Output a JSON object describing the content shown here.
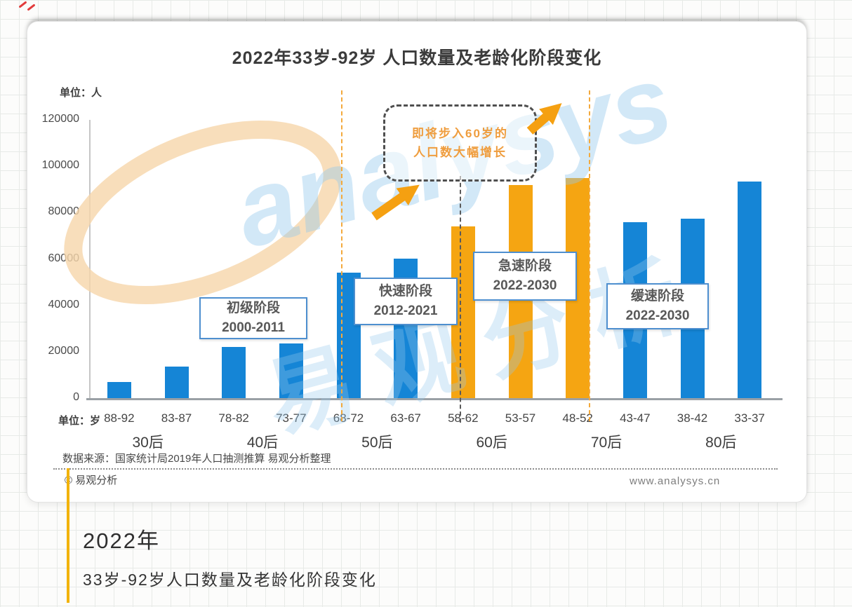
{
  "chart_data": {
    "type": "bar",
    "title": "2022年33岁-92岁 人口数量及老龄化阶段变化",
    "categories": [
      "88-92",
      "83-87",
      "78-82",
      "73-77",
      "68-72",
      "63-67",
      "58-62",
      "53-57",
      "48-52",
      "43-47",
      "38-42",
      "33-37"
    ],
    "values": [
      7000,
      13500,
      22000,
      23500,
      54000,
      60000,
      74000,
      92000,
      95000,
      76000,
      77500,
      93500
    ],
    "bar_colors": [
      "blue",
      "blue",
      "blue",
      "blue",
      "blue",
      "blue",
      "orange",
      "orange",
      "orange",
      "blue",
      "blue",
      "blue"
    ],
    "colors": {
      "blue": "#1585d6",
      "orange": "#f5a512"
    },
    "generations": [
      "30后",
      "40后",
      "50后",
      "60后",
      "70后",
      "80后"
    ],
    "ylim": [
      0,
      120000
    ],
    "y_tick_labels": [
      "120000",
      "100000",
      "80000",
      "60000",
      "40000",
      "20000",
      "0"
    ],
    "y_unit": "单位：人",
    "x_unit": "单位：岁",
    "legend": "none",
    "gridlines": "off"
  },
  "annotations": {
    "callout": {
      "line1": "即将步入60岁的",
      "line2": "人口数大幅增长"
    },
    "stages": [
      {
        "name": "初级阶段",
        "period": "2000-2011"
      },
      {
        "name": "快速阶段",
        "period": "2012-2021"
      },
      {
        "name": "急速阶段",
        "period": "2022-2030"
      },
      {
        "name": "缓速阶段",
        "period": "2022-2030"
      }
    ]
  },
  "footer": {
    "source": "数据来源：国家统计局2019年人口抽测推算 易观分析整理",
    "copyright": "© 易观分析",
    "website": "www.analysys.cn"
  },
  "watermark": {
    "en": "analysys",
    "cn": "易观分析"
  },
  "caption": {
    "year": "2022年",
    "title": "33岁-92岁人口数量及老龄化阶段变化"
  }
}
